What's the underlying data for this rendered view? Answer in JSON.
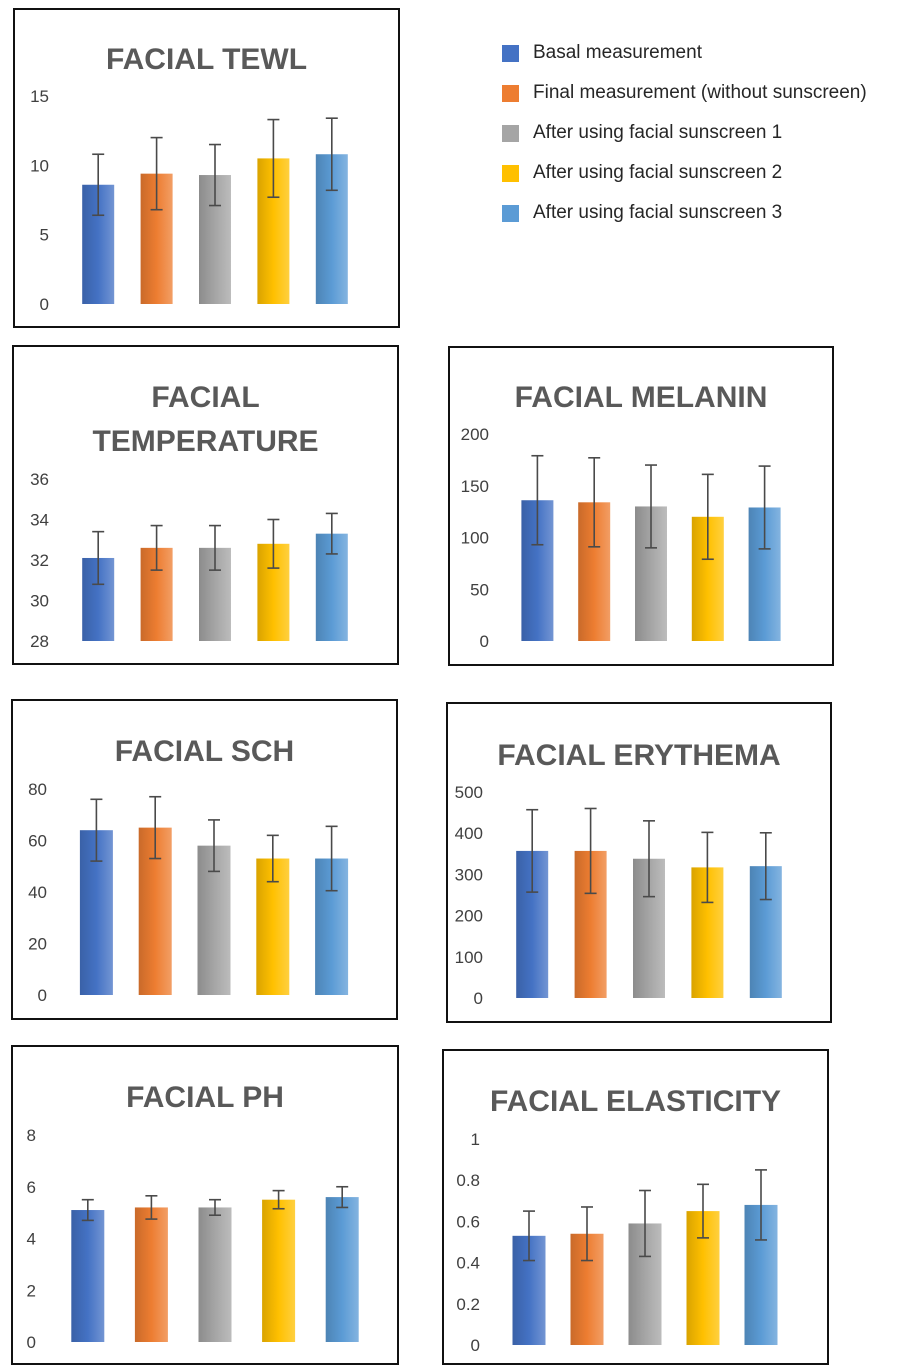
{
  "legend": [
    {
      "label": "Basal measurement",
      "color": "#4472C4"
    },
    {
      "label": "Final measurement (without sunscreen)",
      "color": "#ED7D31"
    },
    {
      "label": "After using facial sunscreen 1",
      "color": "#A5A5A5"
    },
    {
      "label": "After using facial sunscreen 2",
      "color": "#FFC000"
    },
    {
      "label": "After using facial sunscreen 3",
      "color": "#5B9BD5"
    }
  ],
  "chart_data": [
    {
      "type": "bar",
      "title": "FACIAL TEWL",
      "ylim": [
        0,
        15
      ],
      "yticks": [
        "0",
        "5",
        "10",
        "15"
      ],
      "values": [
        8.6,
        9.4,
        9.3,
        10.5,
        10.8
      ],
      "errors": [
        2.2,
        2.6,
        2.2,
        2.8,
        2.6
      ]
    },
    {
      "type": "bar",
      "title": "FACIAL TEMPERATURE",
      "ylim": [
        28,
        36
      ],
      "yticks": [
        "28",
        "30",
        "32",
        "34",
        "36"
      ],
      "values": [
        32.1,
        32.6,
        32.6,
        32.8,
        33.3
      ],
      "errors": [
        1.3,
        1.1,
        1.1,
        1.2,
        1.0
      ]
    },
    {
      "type": "bar",
      "title": "FACIAL MELANIN",
      "ylim": [
        0,
        200
      ],
      "yticks": [
        "0",
        "50",
        "100",
        "150",
        "200"
      ],
      "values": [
        136,
        134,
        130,
        120,
        129
      ],
      "errors": [
        43,
        43,
        40,
        41,
        40
      ]
    },
    {
      "type": "bar",
      "title": "FACIAL SCH",
      "ylim": [
        0,
        80
      ],
      "yticks": [
        "0",
        "20",
        "40",
        "60",
        "80"
      ],
      "values": [
        64,
        65,
        58,
        53,
        53
      ],
      "errors": [
        12,
        12,
        10,
        9,
        12.5
      ]
    },
    {
      "type": "bar",
      "title": "FACIAL ERYTHEMA",
      "ylim": [
        0,
        500
      ],
      "yticks": [
        "0",
        "100",
        "200",
        "300",
        "400",
        "500"
      ],
      "values": [
        357,
        357,
        338,
        317,
        320
      ],
      "errors": [
        100,
        103,
        92,
        85,
        81
      ]
    },
    {
      "type": "bar",
      "title": "FACIAL PH",
      "ylim": [
        0,
        8
      ],
      "yticks": [
        "0",
        "2",
        "4",
        "6",
        "8"
      ],
      "values": [
        5.1,
        5.2,
        5.2,
        5.5,
        5.6
      ],
      "errors": [
        0.4,
        0.45,
        0.3,
        0.35,
        0.4
      ]
    },
    {
      "type": "bar",
      "title": "FACIAL ELASTICITY",
      "ylim": [
        0,
        1
      ],
      "yticks": [
        "0",
        "0.2",
        "0.4",
        "0.6",
        "0.8",
        "1"
      ],
      "values": [
        0.53,
        0.54,
        0.59,
        0.65,
        0.68
      ],
      "errors": [
        0.12,
        0.13,
        0.16,
        0.13,
        0.17
      ]
    }
  ]
}
